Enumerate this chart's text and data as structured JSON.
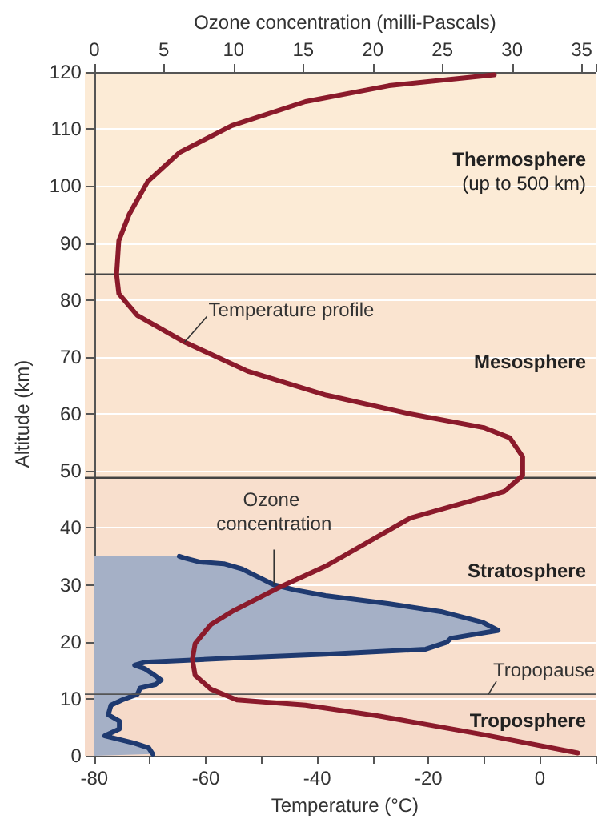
{
  "chart_data": {
    "type": "line",
    "xlabel": "Temperature (°C)",
    "x2label": "Ozone concentration (milli-Pascals)",
    "ylabel": "Altitude (km)",
    "xlim": [
      -80,
      10
    ],
    "xticks": [
      -80,
      {
        "value": -70,
        "label": null
      },
      -60,
      {
        "value": -50,
        "label": null
      },
      -40,
      {
        "value": -30,
        "label": null
      },
      -20,
      {
        "value": -10,
        "label": null
      },
      0,
      {
        "value": 10,
        "label": null
      }
    ],
    "x2lim": [
      0,
      36
    ],
    "x2ticks": [
      0,
      5,
      10,
      15,
      20,
      25,
      30,
      35
    ],
    "ylim": [
      0,
      120
    ],
    "yticks": [
      0,
      10,
      20,
      30,
      40,
      50,
      60,
      70,
      80,
      90,
      100,
      110,
      120
    ],
    "grid": "y",
    "legend": false,
    "series": [
      {
        "name": "Temperature profile",
        "color": "#8b1a2b",
        "x": [
          6.8,
          -10.1,
          -29,
          -42.1,
          -54.4,
          -59.1,
          -61.9,
          -62.4,
          -61.9,
          -59.1,
          -55.3,
          -46.9,
          -38.4,
          -23.3,
          -6.4,
          -3.1,
          -3.1,
          -5.4,
          -10.1,
          -23.3,
          -38.4,
          -52.5,
          -63.8,
          -72.3,
          -75.6,
          -76,
          -75.6,
          -73.7,
          -70.4,
          -64.7,
          -55.3,
          -42.1,
          -27.1,
          -8.2
        ],
        "values": [
          0.5,
          3.7,
          7,
          8.9,
          9.8,
          11.7,
          14.1,
          16.9,
          19.7,
          23,
          25.3,
          29.5,
          33.3,
          41.7,
          46.4,
          49.2,
          52.5,
          55.8,
          57.6,
          60,
          63.3,
          67.5,
          72.6,
          77.3,
          81.1,
          84.5,
          90.4,
          95.1,
          100.8,
          105.9,
          110.6,
          114.8,
          117.6,
          119.5
        ]
      },
      {
        "name": "Ozone concentration",
        "type": "area",
        "axis": "x2",
        "color": "#1f3a70",
        "x": [
          0,
          4.2,
          3.9,
          2.9,
          0.75,
          1.8,
          1.8,
          1,
          1.2,
          2,
          3.1,
          3.3,
          4.4,
          4.8,
          4.1,
          3.6,
          2.9,
          3.6,
          10.6,
          16.6,
          23.8,
          25.3,
          25.6,
          29,
          27.9,
          24.9,
          21.1,
          16.6,
          14.4,
          12.9,
          10.6,
          9.3,
          7.6,
          6.5,
          6.1,
          0
        ],
        "values": [
          0,
          0.3,
          1.4,
          2.2,
          3.5,
          4.7,
          6.1,
          7.2,
          8.9,
          9.8,
          10.8,
          11.9,
          12.5,
          13.3,
          14.5,
          15.3,
          15.9,
          16.4,
          17.2,
          17.8,
          18.7,
          19.9,
          20.6,
          22,
          23.4,
          25.3,
          26.7,
          28.1,
          29.1,
          30,
          32.8,
          33.7,
          34,
          34.7,
          35,
          35
        ]
      }
    ],
    "bands": [
      {
        "axis": "y",
        "from": 84.5,
        "to": 120,
        "label": "Thermosphere",
        "color": "#fcebd6"
      },
      {
        "axis": "y",
        "from": 48.8,
        "to": 84.5,
        "label": "Mesosphere",
        "color": "#fae4d0"
      },
      {
        "axis": "y",
        "from": 10.8,
        "to": 48.8,
        "label": "Stratosphere",
        "color": "#f8dfcd"
      },
      {
        "axis": "y",
        "from": 0,
        "to": 10.8,
        "label": "Troposphere",
        "color": "#f6dac9"
      }
    ],
    "ref_lines": [
      {
        "axis": "y",
        "value": 84.5,
        "label": null,
        "color": "#444444"
      },
      {
        "axis": "y",
        "value": 48.8,
        "label": null,
        "color": "#444444"
      },
      {
        "axis": "y",
        "value": 10.8,
        "label": "Tropopause",
        "color": "#555555"
      }
    ],
    "annotations": [
      "(up to 500 km)"
    ]
  }
}
